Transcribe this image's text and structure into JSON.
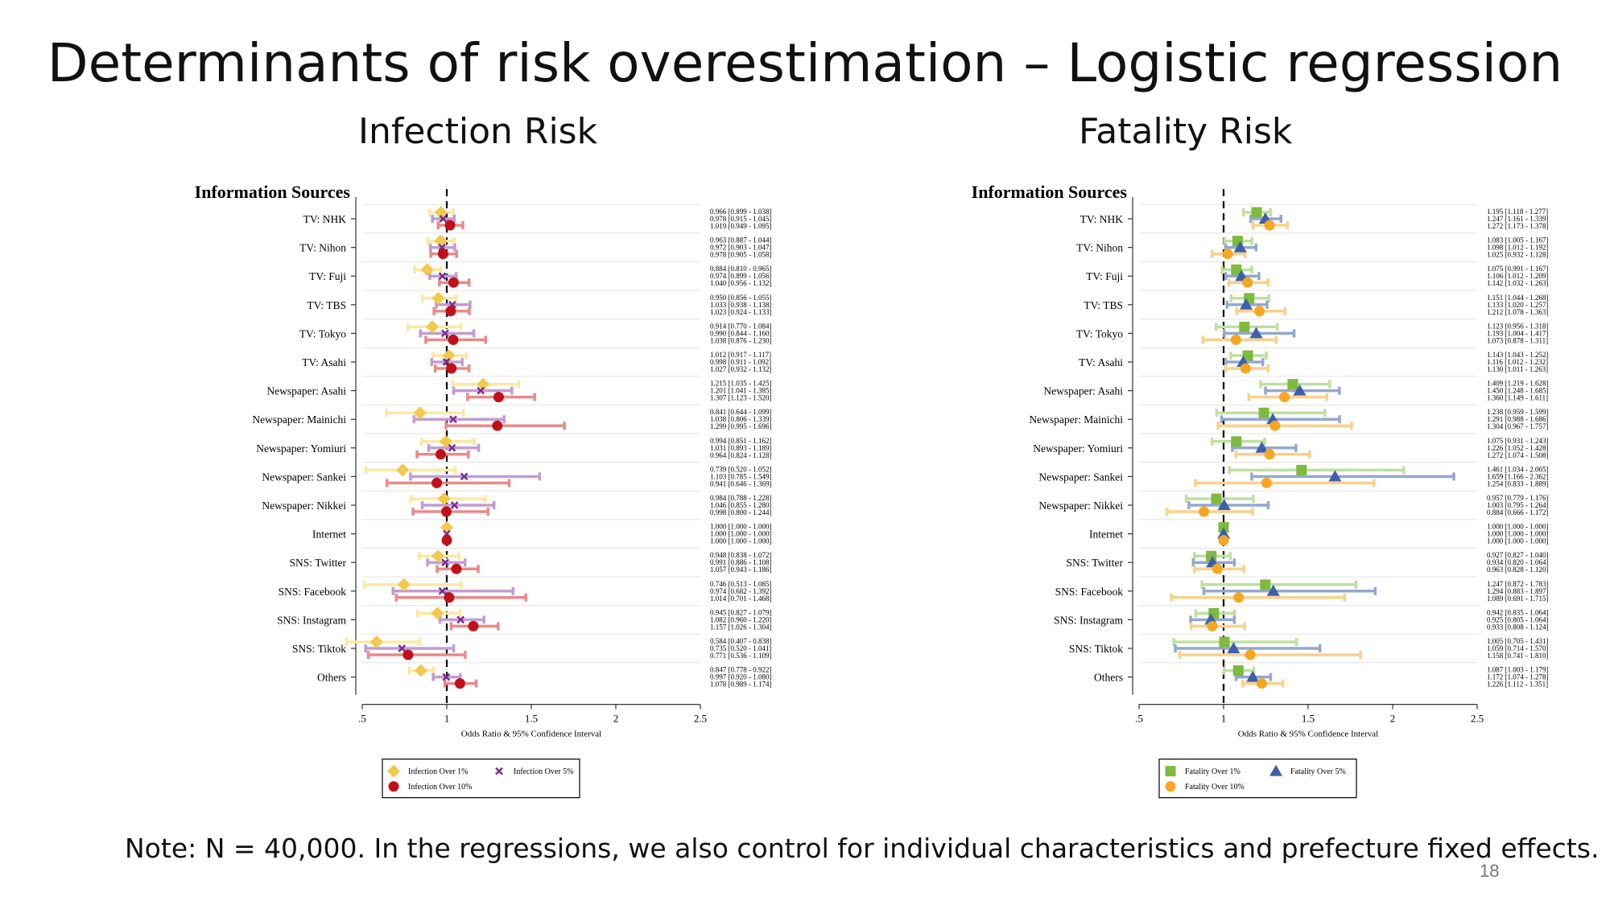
{
  "slide": {
    "title": "Determinants of risk overestimation – Logistic regression",
    "note": "Note: N = 40,000. In the regressions, we also control for individual characteristics and prefecture fixed effects.",
    "page_number": "18"
  },
  "panels": {
    "infection": {
      "title": "Infection Risk"
    },
    "fatality": {
      "title": "Fatality Risk"
    }
  },
  "chart_data": [
    {
      "type": "scatter",
      "title": "Infection Risk",
      "ylabel": "Information Sources",
      "xlabel": "Odds Ratio & 95% Confidence Interval",
      "xlim": [
        0.5,
        2.5
      ],
      "xticks": [
        0.5,
        1,
        1.5,
        2,
        2.5
      ],
      "xtick_labels": [
        ".5",
        "1",
        "1.5",
        "2",
        "2.5"
      ],
      "reference_line": 1,
      "categories": [
        "TV: NHK",
        "TV: Nihon",
        "TV: Fuji",
        "TV: TBS",
        "TV: Tokyo",
        "TV: Asahi",
        "Newspaper: Asahi",
        "Newspaper: Mainichi",
        "Newspaper: Yomiuri",
        "Newspaper: Sankei",
        "Newspaper: Nikkei",
        "Internet",
        "SNS: Twitter",
        "SNS: Facebook",
        "SNS: Instagram",
        "SNS: Tiktok",
        "Others"
      ],
      "legend_position": "bottom",
      "series": [
        {
          "name": "Infection Over 1%",
          "marker": "diamond",
          "color": "#F2C94C",
          "ci_color": "#FBE9A3",
          "values": [
            0.966,
            0.963,
            0.884,
            0.95,
            0.914,
            1.012,
            1.215,
            0.841,
            0.994,
            0.739,
            0.984,
            1.0,
            0.948,
            0.746,
            0.945,
            0.584,
            0.847
          ],
          "lower": [
            0.899,
            0.887,
            0.81,
            0.856,
            0.77,
            0.917,
            1.035,
            0.644,
            0.851,
            0.52,
            0.788,
            1.0,
            0.838,
            0.513,
            0.827,
            0.407,
            0.778
          ],
          "upper": [
            1.038,
            1.044,
            0.965,
            1.055,
            1.084,
            1.117,
            1.425,
            1.099,
            1.162,
            1.052,
            1.228,
            1.0,
            1.072,
            1.085,
            1.079,
            0.838,
            0.922
          ],
          "labels": [
            "0.966 [0.899 - 1.038]",
            "0.963 [0.887 - 1.044]",
            "0.884 [0.810 - 0.965]",
            "0.950 [0.856 - 1.055]",
            "0.914 [0.770 - 1.084]",
            "1.012 [0.917 - 1.117]",
            "1.215 [1.035 - 1.425]",
            "0.841 [0.644 - 1.099]",
            "0.994 [0.851 - 1.162]",
            "0.739 [0.520 - 1.052]",
            "0.984 [0.788 - 1.228]",
            "1.000 [1.000 - 1.000]",
            "0.948 [0.838 - 1.072]",
            "0.746 [0.513 - 1.085]",
            "0.945 [0.827 - 1.079]",
            "0.584 [0.407 - 0.838]",
            "0.847 [0.778 - 0.922]"
          ]
        },
        {
          "name": "Infection Over 5%",
          "marker": "x",
          "color": "#7B2C8F",
          "ci_color": "#C39BD3",
          "values": [
            0.978,
            0.972,
            0.974,
            1.033,
            0.99,
            0.998,
            1.201,
            1.038,
            1.031,
            1.103,
            1.046,
            1.0,
            0.991,
            0.974,
            1.082,
            0.735,
            0.997
          ],
          "lower": [
            0.915,
            0.903,
            0.899,
            0.938,
            0.844,
            0.911,
            1.041,
            0.806,
            0.893,
            0.785,
            0.855,
            1.0,
            0.886,
            0.682,
            0.96,
            0.52,
            0.92
          ],
          "upper": [
            1.045,
            1.047,
            1.056,
            1.138,
            1.16,
            1.092,
            1.385,
            1.339,
            1.189,
            1.549,
            1.28,
            1.0,
            1.108,
            1.392,
            1.22,
            1.041,
            1.08
          ],
          "labels": [
            "0.978 [0.915 - 1.045]",
            "0.972 [0.903 - 1.047]",
            "0.974 [0.899 - 1.056]",
            "1.033 [0.938 - 1.138]",
            "0.990 [0.844 - 1.160]",
            "0.998 [0.911 - 1.092]",
            "1.201 [1.041 - 1.385]",
            "1.038 [0.806 - 1.339]",
            "1.031 [0.893 - 1.189]",
            "1.103 [0.785 - 1.549]",
            "1.046 [0.855 - 1.280]",
            "1.000 [1.000 - 1.000]",
            "0.991 [0.886 - 1.108]",
            "0.974 [0.682 - 1.392]",
            "1.082 [0.960 - 1.220]",
            "0.735 [0.520 - 1.041]",
            "0.997 [0.920 - 1.080]"
          ]
        },
        {
          "name": "Infection Over 10%",
          "marker": "circle",
          "color": "#C0101A",
          "ci_color": "#E88A8A",
          "values": [
            1.019,
            0.978,
            1.04,
            1.023,
            1.038,
            1.027,
            1.307,
            1.299,
            0.964,
            0.941,
            0.998,
            1.0,
            1.057,
            1.014,
            1.157,
            0.771,
            1.078
          ],
          "lower": [
            0.949,
            0.905,
            0.956,
            0.924,
            0.876,
            0.932,
            1.123,
            0.995,
            0.824,
            0.646,
            0.8,
            1.0,
            0.943,
            0.701,
            1.026,
            0.536,
            0.989
          ],
          "upper": [
            1.095,
            1.058,
            1.132,
            1.133,
            1.23,
            1.132,
            1.52,
            1.696,
            1.128,
            1.369,
            1.244,
            1.0,
            1.186,
            1.468,
            1.304,
            1.109,
            1.174
          ],
          "labels": [
            "1.019 [0.949 - 1.095]",
            "0.978 [0.905 - 1.058]",
            "1.040 [0.956 - 1.132]",
            "1.023 [0.924 - 1.133]",
            "1.038 [0.876 - 1.230]",
            "1.027 [0.932 - 1.132]",
            "1.307 [1.123 - 1.520]",
            "1.299 [0.995 - 1.696]",
            "0.964 [0.824 - 1.128]",
            "0.941 [0.646 - 1.369]",
            "0.998 [0.800 - 1.244]",
            "1.000 [1.000 - 1.000]",
            "1.057 [0.943 - 1.186]",
            "1.014 [0.701 - 1.468]",
            "1.157 [1.026 - 1.304]",
            "0.771 [0.536 - 1.109]",
            "1.078 [0.989 - 1.174]"
          ]
        }
      ]
    },
    {
      "type": "scatter",
      "title": "Fatality Risk",
      "ylabel": "Information Sources",
      "xlabel": "Odds Ratio & 95% Confidence Interval",
      "xlim": [
        0.5,
        2.5
      ],
      "xticks": [
        0.5,
        1,
        1.5,
        2,
        2.5
      ],
      "xtick_labels": [
        ".5",
        "1",
        "1.5",
        "2",
        "2.5"
      ],
      "reference_line": 1,
      "categories": [
        "TV: NHK",
        "TV: Nihon",
        "TV: Fuji",
        "TV: TBS",
        "TV: Tokyo",
        "TV: Asahi",
        "Newspaper: Asahi",
        "Newspaper: Mainichi",
        "Newspaper: Yomiuri",
        "Newspaper: Sankei",
        "Newspaper: Nikkei",
        "Internet",
        "SNS: Twitter",
        "SNS: Facebook",
        "SNS: Instagram",
        "SNS: Tiktok",
        "Others"
      ],
      "legend_position": "bottom",
      "series": [
        {
          "name": "Fatality Over 1%",
          "marker": "square",
          "color": "#7DBA3E",
          "ci_color": "#BFE0A0",
          "values": [
            1.195,
            1.083,
            1.075,
            1.151,
            1.123,
            1.143,
            1.409,
            1.238,
            1.075,
            1.461,
            0.957,
            1.0,
            0.927,
            1.247,
            0.942,
            1.005,
            1.087
          ],
          "lower": [
            1.118,
            1.005,
            0.991,
            1.044,
            0.956,
            1.043,
            1.219,
            0.959,
            0.931,
            1.034,
            0.779,
            1.0,
            0.827,
            0.872,
            0.835,
            0.705,
            1.003
          ],
          "upper": [
            1.277,
            1.167,
            1.167,
            1.268,
            1.318,
            1.252,
            1.628,
            1.599,
            1.243,
            2.065,
            1.176,
            1.0,
            1.04,
            1.783,
            1.064,
            1.431,
            1.179
          ],
          "labels": [
            "1.195 [1.118 - 1.277]",
            "1.083 [1.005 - 1.167]",
            "1.075 [0.991 - 1.167]",
            "1.151 [1.044 - 1.268]",
            "1.123 [0.956 - 1.318]",
            "1.143 [1.043 - 1.252]",
            "1.409 [1.219 - 1.628]",
            "1.238 [0.959 - 1.599]",
            "1.075 [0.931 - 1.243]",
            "1.461 [1.034 - 2.065]",
            "0.957 [0.779 - 1.176]",
            "1.000 [1.000 - 1.000]",
            "0.927 [0.827 - 1.040]",
            "1.247 [0.872 - 1.783]",
            "0.942 [0.835 - 1.064]",
            "1.005 [0.705 - 1.431]",
            "1.087 [1.003 - 1.179]"
          ]
        },
        {
          "name": "Fatality Over 5%",
          "marker": "triangle",
          "color": "#3F5FA8",
          "ci_color": "#93A8CF",
          "values": [
            1.247,
            1.098,
            1.106,
            1.133,
            1.193,
            1.116,
            1.45,
            1.291,
            1.226,
            1.659,
            1.003,
            1.0,
            0.934,
            1.294,
            0.925,
            1.059,
            1.172
          ],
          "lower": [
            1.161,
            1.012,
            1.012,
            1.02,
            1.004,
            1.012,
            1.248,
            0.988,
            1.052,
            1.166,
            0.795,
            1.0,
            0.82,
            0.883,
            0.805,
            0.714,
            1.074
          ],
          "upper": [
            1.339,
            1.192,
            1.209,
            1.257,
            1.417,
            1.232,
            1.685,
            1.686,
            1.428,
            2.362,
            1.264,
            1.0,
            1.064,
            1.897,
            1.064,
            1.57,
            1.278
          ],
          "labels": [
            "1.247 [1.161 - 1.339]",
            "1.098 [1.012 - 1.192]",
            "1.106 [1.012 - 1.209]",
            "1.133 [1.020 - 1.257]",
            "1.193 [1.004 - 1.417]",
            "1.116 [1.012 - 1.232]",
            "1.450 [1.248 - 1.685]",
            "1.291 [0.988 - 1.686]",
            "1.226 [1.052 - 1.428]",
            "1.659 [1.166 - 2.362]",
            "1.003 [0.795 - 1.264]",
            "1.000 [1.000 - 1.000]",
            "0.934 [0.820 - 1.064]",
            "1.294 [0.883 - 1.897]",
            "0.925 [0.805 - 1.064]",
            "1.059 [0.714 - 1.570]",
            "1.172 [1.074 - 1.278]"
          ]
        },
        {
          "name": "Fatality Over 10%",
          "marker": "circle",
          "color": "#F5A623",
          "ci_color": "#FAD08C",
          "values": [
            1.272,
            1.025,
            1.142,
            1.212,
            1.073,
            1.13,
            1.36,
            1.304,
            1.272,
            1.254,
            0.884,
            1.0,
            0.963,
            1.089,
            0.933,
            1.158,
            1.226
          ],
          "lower": [
            1.173,
            0.932,
            1.032,
            1.078,
            0.878,
            1.011,
            1.149,
            0.967,
            1.074,
            0.833,
            0.666,
            1.0,
            0.828,
            0.691,
            0.808,
            0.741,
            1.112
          ],
          "upper": [
            1.378,
            1.128,
            1.263,
            1.363,
            1.311,
            1.263,
            1.611,
            1.757,
            1.508,
            1.889,
            1.172,
            1.0,
            1.12,
            1.715,
            1.124,
            1.81,
            1.351
          ],
          "labels": [
            "1.272 [1.173 - 1.378]",
            "1.025 [0.932 - 1.128]",
            "1.142 [1.032 - 1.263]",
            "1.212 [1.078 - 1.363]",
            "1.073 [0.878 - 1.311]",
            "1.130 [1.011 - 1.263]",
            "1.360 [1.149 - 1.611]",
            "1.304 [0.967 - 1.757]",
            "1.272 [1.074 - 1.508]",
            "1.254 [0.833 - 1.889]",
            "0.884 [0.666 - 1.172]",
            "1.000 [1.000 - 1.000]",
            "0.963 [0.828 - 1.120]",
            "1.089 [0.691 - 1.715]",
            "0.933 [0.808 - 1.124]",
            "1.158 [0.741 - 1.810]",
            "1.226 [1.112 - 1.351]"
          ]
        }
      ]
    }
  ]
}
